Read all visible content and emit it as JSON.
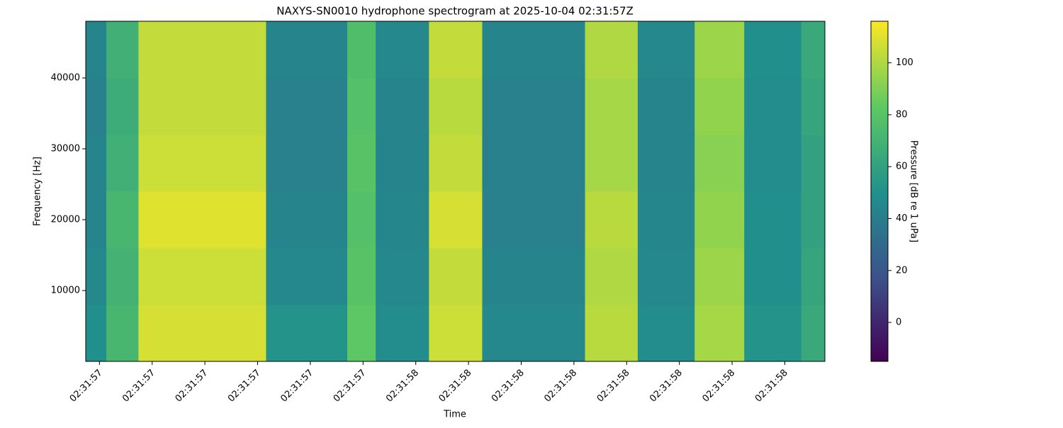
{
  "chart_data": {
    "type": "heatmap",
    "title": "NAXYS-SN0010 hydrophone spectrogram at 2025-10-04 02:31:57Z",
    "xlabel": "Time",
    "ylabel": "Frequency [Hz]",
    "colorbar_label": "Pressure [dB re 1 uPa]",
    "colormap": "viridis",
    "x": [
      0.374,
      0.413,
      0.474,
      0.716,
      0.87,
      0.924,
      1.025,
      1.126,
      1.321,
      1.421,
      1.529,
      1.623,
      1.731,
      1.776
    ],
    "y": [
      0,
      8000,
      16000,
      24000,
      32000,
      40000,
      48000
    ],
    "z": [
      [
        50,
        72,
        108,
        52,
        82,
        48,
        106,
        46,
        102,
        48,
        98,
        52,
        64
      ],
      [
        46,
        70,
        106,
        46,
        80,
        46,
        104,
        44,
        100,
        46,
        96,
        50,
        62
      ],
      [
        44,
        72,
        110,
        44,
        78,
        45,
        108,
        42,
        102,
        45,
        94,
        50,
        60
      ],
      [
        44,
        68,
        106,
        42,
        80,
        44,
        104,
        42,
        98,
        44,
        92,
        48,
        60
      ],
      [
        42,
        66,
        104,
        42,
        78,
        44,
        102,
        42,
        98,
        44,
        94,
        48,
        62
      ],
      [
        44,
        68,
        104,
        44,
        76,
        46,
        104,
        44,
        100,
        46,
        96,
        50,
        64
      ]
    ],
    "xlim": [
      0.374,
      1.776
    ],
    "xticks": [
      {
        "value": 0.4,
        "label": "02:31:57"
      },
      {
        "value": 0.5,
        "label": "02:31:57"
      },
      {
        "value": 0.6,
        "label": "02:31:57"
      },
      {
        "value": 0.7,
        "label": "02:31:57"
      },
      {
        "value": 0.8,
        "label": "02:31:57"
      },
      {
        "value": 0.9,
        "label": "02:31:57"
      },
      {
        "value": 1.0,
        "label": "02:31:58"
      },
      {
        "value": 1.1,
        "label": "02:31:58"
      },
      {
        "value": 1.2,
        "label": "02:31:58"
      },
      {
        "value": 1.3,
        "label": "02:31:58"
      },
      {
        "value": 1.4,
        "label": "02:31:58"
      },
      {
        "value": 1.5,
        "label": "02:31:58"
      },
      {
        "value": 1.6,
        "label": "02:31:58"
      },
      {
        "value": 1.7,
        "label": "02:31:58"
      }
    ],
    "ylim": [
      0,
      48000
    ],
    "yticks": [
      10000,
      20000,
      30000,
      40000
    ],
    "clim": [
      -15,
      116
    ],
    "cticks": [
      0,
      20,
      40,
      60,
      80,
      100
    ]
  }
}
